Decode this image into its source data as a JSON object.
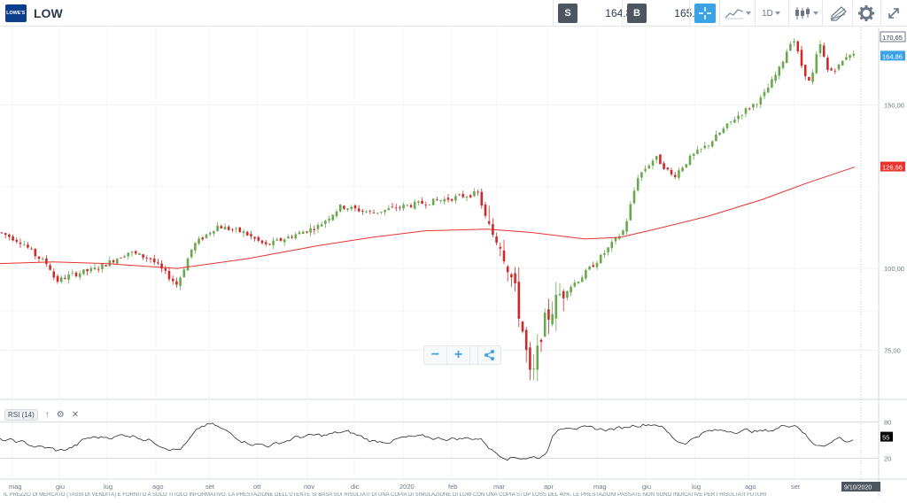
{
  "header": {
    "logo_text": "LOWE'S",
    "symbol": "LOW",
    "sell_tag": "S",
    "sell_price": "164.86",
    "buy_tag": "B",
    "buy_price": "165.28",
    "timeframe": "1D"
  },
  "icons": {
    "crosshair": "crosshair-icon",
    "chart_type": "line-chart-icon",
    "candles": "candlestick-icon",
    "drawing": "drawing-tools-icon",
    "settings": "gear-icon",
    "fullscreen": "expand-icon",
    "zoom_out": "minus-icon",
    "zoom_in": "plus-icon",
    "share": "share-icon"
  },
  "zoom": {
    "out_label": "−",
    "in_label": "+"
  },
  "price_axis": {
    "ticks": [
      "150,00",
      "100,00",
      "75,00"
    ],
    "high_label": "170,65",
    "current_label": "164,86",
    "ma_label": "126,66"
  },
  "time_axis": {
    "labels": [
      "mag",
      "giu",
      "lug",
      "ago",
      "set",
      "ott",
      "nov",
      "dic",
      "2020",
      "feb",
      "mar",
      "apr",
      "mag",
      "giu",
      "lug",
      "ago",
      "set"
    ],
    "cursor_date": "9/10/2020"
  },
  "rsi": {
    "label": "RSI (14)",
    "levels": [
      "80",
      "20"
    ],
    "current": "55"
  },
  "colors": {
    "up": "#6aa84f",
    "down": "#cc2b2b",
    "ma": "#e8332f",
    "accent": "#3ba2e5"
  },
  "disclaimer": "IL PREZZO DI MERCATO (TASSI DI VENDITA) È FORNITO A SOLO TITOLO INFORMATIVO. LA PRESTAZIONE DELL'UTENTE SI BASA SUI RISULTATI DI UNA COPIA DI SIMULAZIONE DI LOW CON UNA COPIA STOP LOSS DEL 40%. LE PRESTAZIONI PASSATE NON SONO INDICATIVE PER I RISULTATI FUTURI",
  "chart_data": {
    "type": "candlestick",
    "symbol": "LOW",
    "x": [
      "mag",
      "giu",
      "lug",
      "ago",
      "set",
      "ott",
      "nov",
      "dic",
      "2020",
      "feb",
      "mar",
      "apr",
      "mag",
      "giu",
      "lug",
      "ago",
      "set"
    ],
    "close_approx": [
      111,
      97,
      104,
      100,
      110,
      110,
      118,
      118,
      118,
      121,
      90,
      90,
      104,
      132,
      136,
      156,
      164.86
    ],
    "ylim": [
      60,
      172
    ],
    "moving_average_last": 126.66,
    "last_price": 164.86,
    "high_label": 170.65,
    "rsi_current": 55
  }
}
